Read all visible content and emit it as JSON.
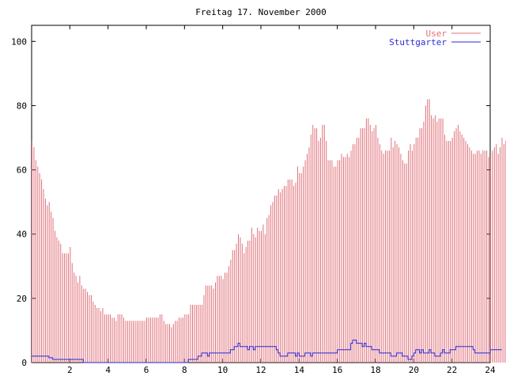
{
  "chart_data": {
    "type": "bar",
    "title": "Freitag 17. November 2000",
    "xlabel": "",
    "ylabel": "",
    "xlim": [
      0,
      24
    ],
    "ylim": [
      0,
      105
    ],
    "x_ticks": [
      2,
      4,
      6,
      8,
      10,
      12,
      14,
      16,
      18,
      20,
      22,
      24
    ],
    "y_ticks": [
      0,
      20,
      40,
      60,
      80,
      100
    ],
    "grid": false,
    "legend_position": "top-right",
    "x_step_hours": 0.1,
    "series": [
      {
        "name": "User",
        "type": "bar",
        "color": "#e0707a",
        "values": [
          69,
          67,
          63,
          61,
          59,
          57,
          54,
          51,
          49,
          50,
          47,
          45,
          41,
          39,
          38,
          37,
          34,
          34,
          34,
          34,
          36,
          31,
          28,
          27,
          25,
          27,
          24,
          23,
          23,
          22,
          21,
          21,
          19,
          18,
          17,
          17,
          16,
          17,
          15,
          15,
          15,
          15,
          14,
          14,
          13,
          15,
          15,
          15,
          14,
          13,
          13,
          13,
          13,
          13,
          13,
          13,
          13,
          13,
          13,
          13,
          14,
          14,
          14,
          14,
          14,
          14,
          14,
          15,
          15,
          13,
          12,
          12,
          12,
          11,
          12,
          13,
          13,
          14,
          14,
          14,
          15,
          15,
          15,
          18,
          18,
          18,
          18,
          18,
          18,
          18,
          21,
          24,
          24,
          24,
          24,
          23,
          25,
          27,
          27,
          27,
          26,
          28,
          28,
          30,
          32,
          35,
          35,
          37,
          40,
          39,
          37,
          34,
          36,
          38,
          38,
          42,
          40,
          39,
          42,
          41,
          41,
          43,
          40,
          45,
          46,
          49,
          50,
          52,
          52,
          54,
          53,
          54,
          55,
          55,
          57,
          57,
          57,
          55,
          56,
          61,
          59,
          59,
          61,
          63,
          65,
          67,
          71,
          74,
          73,
          73,
          69,
          70,
          74,
          74,
          69,
          63,
          63,
          63,
          61,
          61,
          63,
          63,
          65,
          64,
          64,
          65,
          64,
          66,
          68,
          68,
          70,
          70,
          73,
          73,
          73,
          76,
          76,
          74,
          72,
          73,
          74,
          70,
          68,
          66,
          65,
          66,
          66,
          66,
          70,
          67,
          69,
          68,
          67,
          65,
          63,
          62,
          62,
          66,
          68,
          66,
          68,
          70,
          70,
          73,
          73,
          75,
          80,
          82,
          82,
          77,
          76,
          77,
          75,
          76,
          76,
          76,
          71,
          69,
          69,
          69,
          70,
          72,
          73,
          74,
          72,
          71,
          70,
          69,
          68,
          67,
          66,
          65,
          65,
          66,
          66,
          65,
          66,
          66,
          66,
          64,
          64,
          66,
          67,
          68,
          65,
          67,
          70,
          68,
          69,
          66
        ]
      },
      {
        "name": "Stuttgarter",
        "type": "line",
        "color": "#2a2ad8",
        "values": [
          2,
          2,
          2,
          2,
          2,
          2,
          2,
          2,
          2,
          1.5,
          1.5,
          1,
          1,
          1,
          1,
          1,
          1,
          1,
          1,
          1,
          1,
          1,
          1,
          1,
          1,
          1,
          1,
          0,
          0,
          0,
          0,
          0,
          0,
          0,
          0,
          0,
          0,
          0,
          0,
          0,
          0,
          0,
          0,
          0,
          0,
          0,
          0,
          0,
          0,
          0,
          0,
          0,
          0,
          0,
          0,
          0,
          0,
          0,
          0,
          0,
          0,
          0,
          0,
          0,
          0,
          0,
          0,
          0,
          0,
          0,
          0,
          0,
          0,
          0,
          0,
          0,
          0,
          0,
          0,
          0,
          0,
          0,
          1,
          1,
          1,
          1,
          1,
          2,
          2,
          3,
          3,
          3,
          2,
          3,
          3,
          3,
          3,
          3,
          3,
          3,
          3,
          3,
          3,
          3,
          4,
          4,
          5,
          5,
          6,
          5,
          5,
          5,
          5,
          4,
          5,
          5,
          4,
          5,
          5,
          5,
          5,
          5,
          5,
          5,
          5,
          5,
          5,
          5,
          4,
          3,
          2,
          2,
          2,
          2,
          3,
          3,
          3,
          3,
          2,
          3,
          2,
          2,
          2,
          3,
          3,
          3,
          2,
          3,
          3,
          3,
          3,
          3,
          3,
          3,
          3,
          3,
          3,
          3,
          3,
          3,
          4,
          4,
          4,
          4,
          4,
          4,
          4,
          6,
          7,
          7,
          6,
          6,
          6,
          5,
          6,
          5,
          5,
          5,
          4,
          4,
          4,
          4,
          3,
          3,
          3,
          3,
          3,
          3,
          2,
          2,
          2,
          3,
          3,
          3,
          2,
          2,
          2,
          1,
          1,
          2,
          3,
          4,
          4,
          3,
          4,
          3,
          3,
          3,
          4,
          3,
          3,
          2,
          2,
          2,
          3,
          4,
          3,
          3,
          3,
          4,
          4,
          4,
          5,
          5,
          5,
          5,
          5,
          5,
          5,
          5,
          5,
          4,
          3,
          3,
          3,
          3,
          3,
          3,
          3,
          3,
          4,
          4,
          4,
          4,
          4,
          4
        ]
      }
    ]
  }
}
